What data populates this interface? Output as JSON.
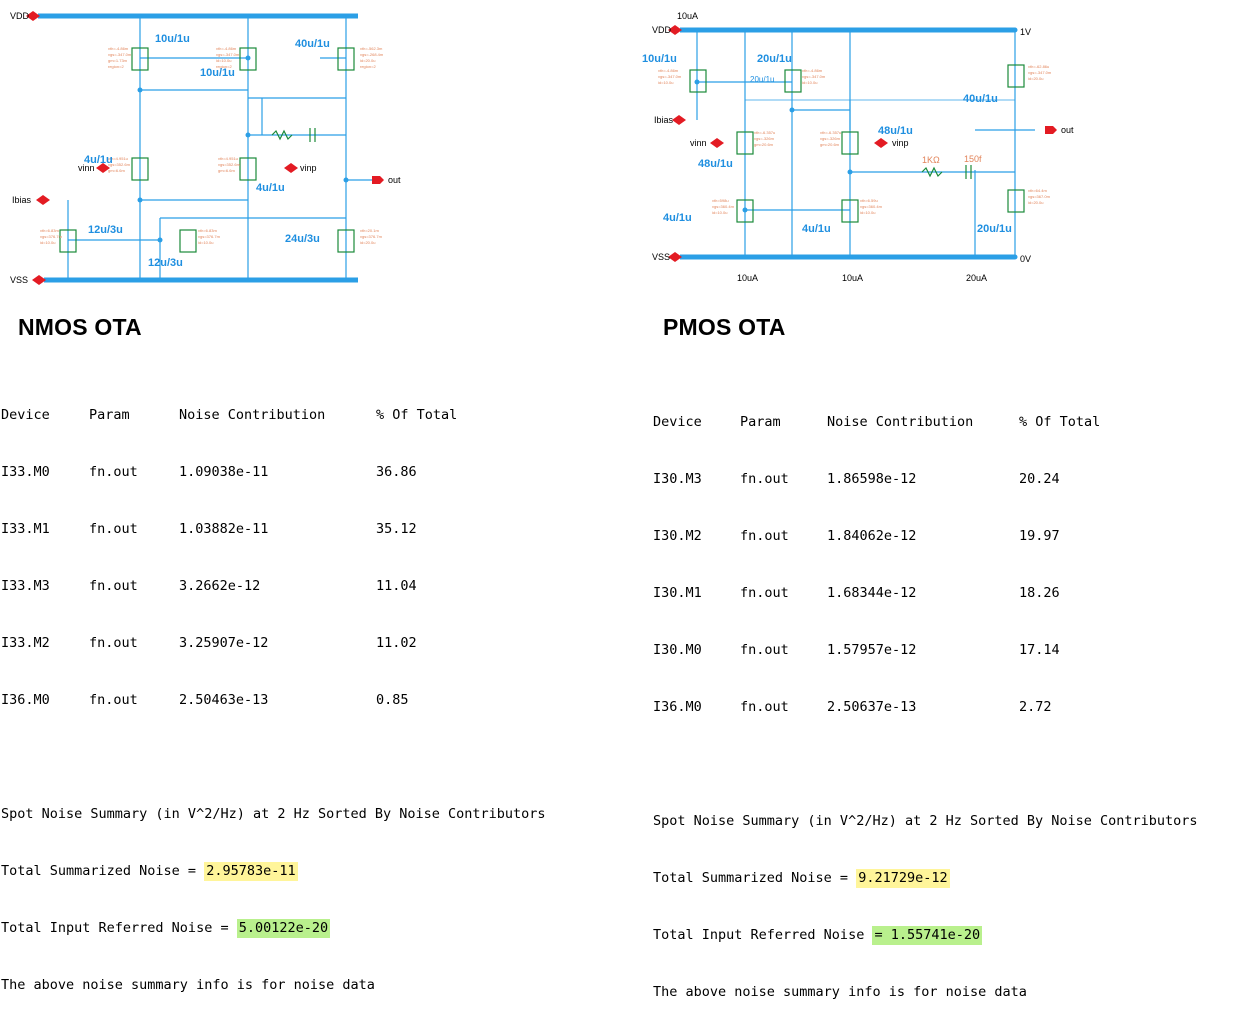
{
  "nmos": {
    "title": "NMOS OTA",
    "schematic": {
      "rail_top": "VDD",
      "rail_bottom": "VSS",
      "ibias": "Ibias",
      "vinn": "vinn",
      "vinp": "vinp",
      "out": "out",
      "sizes": [
        "10u/1u",
        "10u/1u",
        "40u/1u",
        "4u/1u",
        "4u/1u",
        "12u/3u",
        "12u/3u",
        "24u/3u"
      ]
    },
    "report": {
      "headers": [
        "Device",
        "Param",
        "Noise Contribution",
        "% Of Total"
      ],
      "rows": [
        [
          "I33.M0",
          "fn.out",
          "1.09038e-11",
          "36.86"
        ],
        [
          "I33.M1",
          "fn.out",
          "1.03882e-11",
          "35.12"
        ],
        [
          "I33.M3",
          "fn.out",
          "3.2662e-12",
          "11.04"
        ],
        [
          "I33.M2",
          "fn.out",
          "3.25907e-12",
          "11.02"
        ],
        [
          "I36.M0",
          "fn.out",
          "2.50463e-13",
          "0.85"
        ]
      ],
      "summary_line": "Spot Noise Summary (in V^2/Hz) at 2 Hz Sorted By Noise Contributors",
      "total_label": "Total Summarized Noise = ",
      "total_value": "2.95783e-11",
      "input_label": "Total Input Referred Noise = ",
      "input_value": "5.00122e-20",
      "footer": "The above noise summary info is for noise data"
    }
  },
  "pmos": {
    "title": "PMOS OTA",
    "schematic": {
      "rail_top": "VDD",
      "rail_bottom": "VSS",
      "rail_top_v": "1V",
      "rail_bottom_v": "0V",
      "current_top": "10uA",
      "currents_bottom": [
        "10uA",
        "10uA",
        "20uA"
      ],
      "ibias": "Ibias",
      "vinn": "vinn",
      "vinp": "vinp",
      "out": "out",
      "res_1k": "1KΩ",
      "res_150f": "150f",
      "sizes": [
        "10u/1u",
        "20u/1u",
        "20u/1u",
        "40u/1u",
        "48u/1u",
        "48u/1u",
        "4u/1u",
        "4u/1u",
        "20u/1u"
      ]
    },
    "report": {
      "headers": [
        "Device",
        "Param",
        "Noise Contribution",
        "% Of Total"
      ],
      "rows": [
        [
          "I30.M3",
          "fn.out",
          "1.86598e-12",
          "20.24"
        ],
        [
          "I30.M2",
          "fn.out",
          "1.84062e-12",
          "19.97"
        ],
        [
          "I30.M1",
          "fn.out",
          "1.68344e-12",
          "18.26"
        ],
        [
          "I30.M0",
          "fn.out",
          "1.57957e-12",
          "17.14"
        ],
        [
          "I36.M0",
          "fn.out",
          "2.50637e-13",
          "2.72"
        ]
      ],
      "summary_line": "Spot Noise Summary (in V^2/Hz) at 2 Hz Sorted By Noise Contributors",
      "total_label": "Total Summarized Noise = ",
      "total_value": "9.21729e-12",
      "input_label": "Total Input Referred Noise ",
      "input_value": "= 1.55741e-20",
      "footer": "The above noise summary info is for noise data"
    }
  },
  "colors": {
    "wire": "#2b9fe6",
    "rail": "#2b9fe6",
    "device": "#1a8a3a",
    "annotation": "#e2845a",
    "pin": "#e31b23",
    "highlight_total": "#fff59a",
    "highlight_input": "#b9f08d"
  }
}
